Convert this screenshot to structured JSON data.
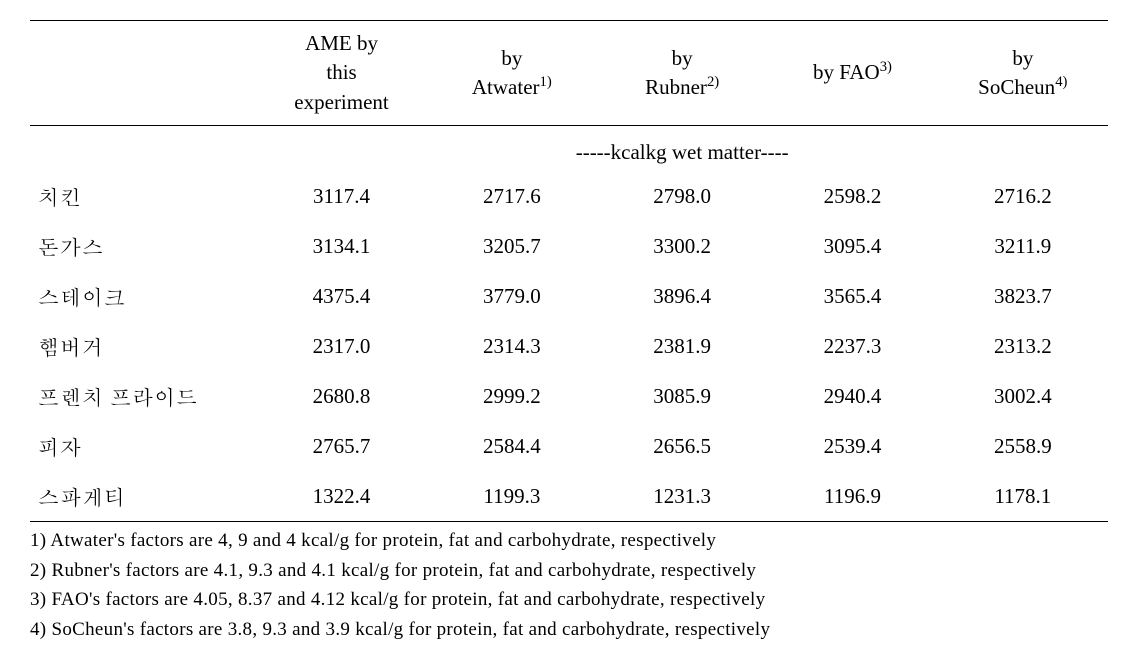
{
  "table": {
    "columns": [
      {
        "label_html": ""
      },
      {
        "label_html": "AME by<br>this<br>experiment"
      },
      {
        "label_html": "by<br>Atwater<sup>1)</sup>"
      },
      {
        "label_html": "by<br>Rubner<sup>2)</sup>"
      },
      {
        "label_html": "by FAO<sup>3)</sup>"
      },
      {
        "label_html": "by<br>SoCheun<sup>4)</sup>"
      }
    ],
    "units_label": "-----kcalkg wet matter----",
    "rows": [
      {
        "label": "치킨",
        "values": [
          "3117.4",
          "2717.6",
          "2798.0",
          "2598.2",
          "2716.2"
        ]
      },
      {
        "label": "돈가스",
        "values": [
          "3134.1",
          "3205.7",
          "3300.2",
          "3095.4",
          "3211.9"
        ]
      },
      {
        "label": "스테이크",
        "values": [
          "4375.4",
          "3779.0",
          "3896.4",
          "3565.4",
          "3823.7"
        ]
      },
      {
        "label": "햄버거",
        "values": [
          "2317.0",
          "2314.3",
          "2381.9",
          "2237.3",
          "2313.2"
        ]
      },
      {
        "label": "프렌치 프라이드",
        "values": [
          "2680.8",
          "2999.2",
          "3085.9",
          "2940.4",
          "3002.4"
        ]
      },
      {
        "label": "피자",
        "values": [
          "2765.7",
          "2584.4",
          "2656.5",
          "2539.4",
          "2558.9"
        ]
      },
      {
        "label": "스파게티",
        "values": [
          "1322.4",
          "1199.3",
          "1231.3",
          "1196.9",
          "1178.1"
        ]
      }
    ]
  },
  "footnotes": [
    "1) Atwater's factors are 4, 9 and 4 kcal/g for protein, fat and carbohydrate, respectively",
    "2) Rubner's factors are 4.1, 9.3 and 4.1 kcal/g for protein, fat and carbohydrate, respectively",
    "3) FAO's factors are 4.05, 8.37 and 4.12 kcal/g for protein, fat and carbohydrate, respectively",
    "4) SoCheun's factors are 3.8, 9.3 and 3.9 kcal/g for protein, fat and carbohydrate, respectively"
  ]
}
